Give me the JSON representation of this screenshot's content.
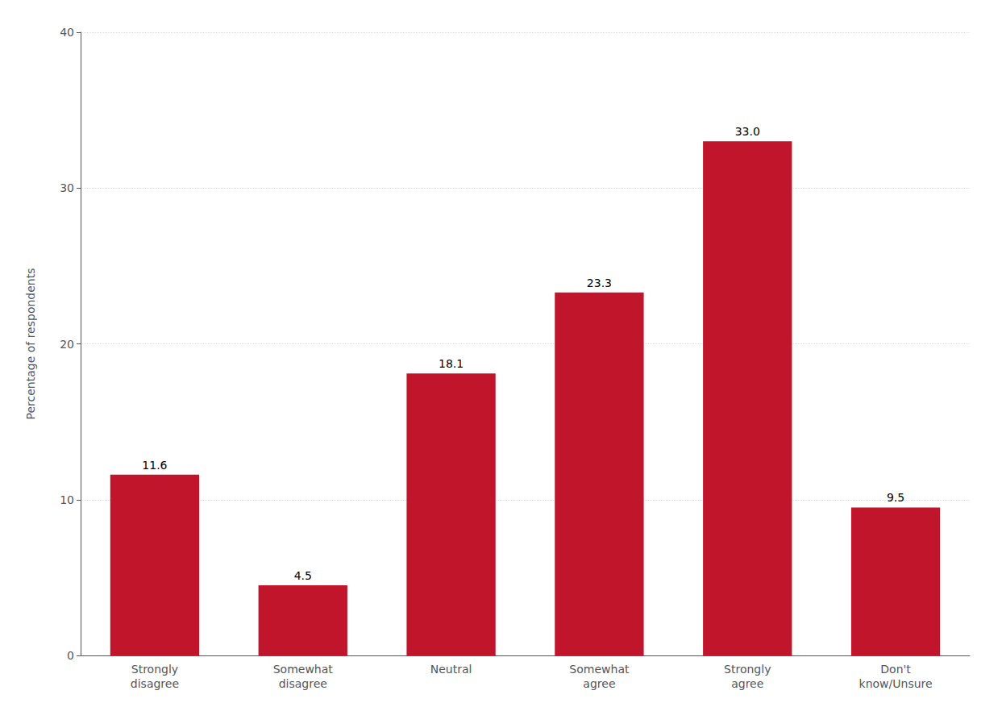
{
  "chart_data": {
    "type": "bar",
    "categories": [
      "Strongly\ndisagree",
      "Somewhat\ndisagree",
      "Neutral",
      "Somewhat\nagree",
      "Strongly\nagree",
      "Don't\nknow/Unsure"
    ],
    "values": [
      11.6,
      4.5,
      18.1,
      23.3,
      33.0,
      9.5
    ],
    "value_labels": [
      "11.6",
      "4.5",
      "18.1",
      "23.3",
      "33.0",
      "9.5"
    ],
    "data_labels": true,
    "color": "#C0152A",
    "ylabel": "Percentage of respondents",
    "ylim": [
      0,
      40
    ],
    "yticks": [
      0,
      10,
      20,
      30,
      40
    ],
    "grid": true
  }
}
